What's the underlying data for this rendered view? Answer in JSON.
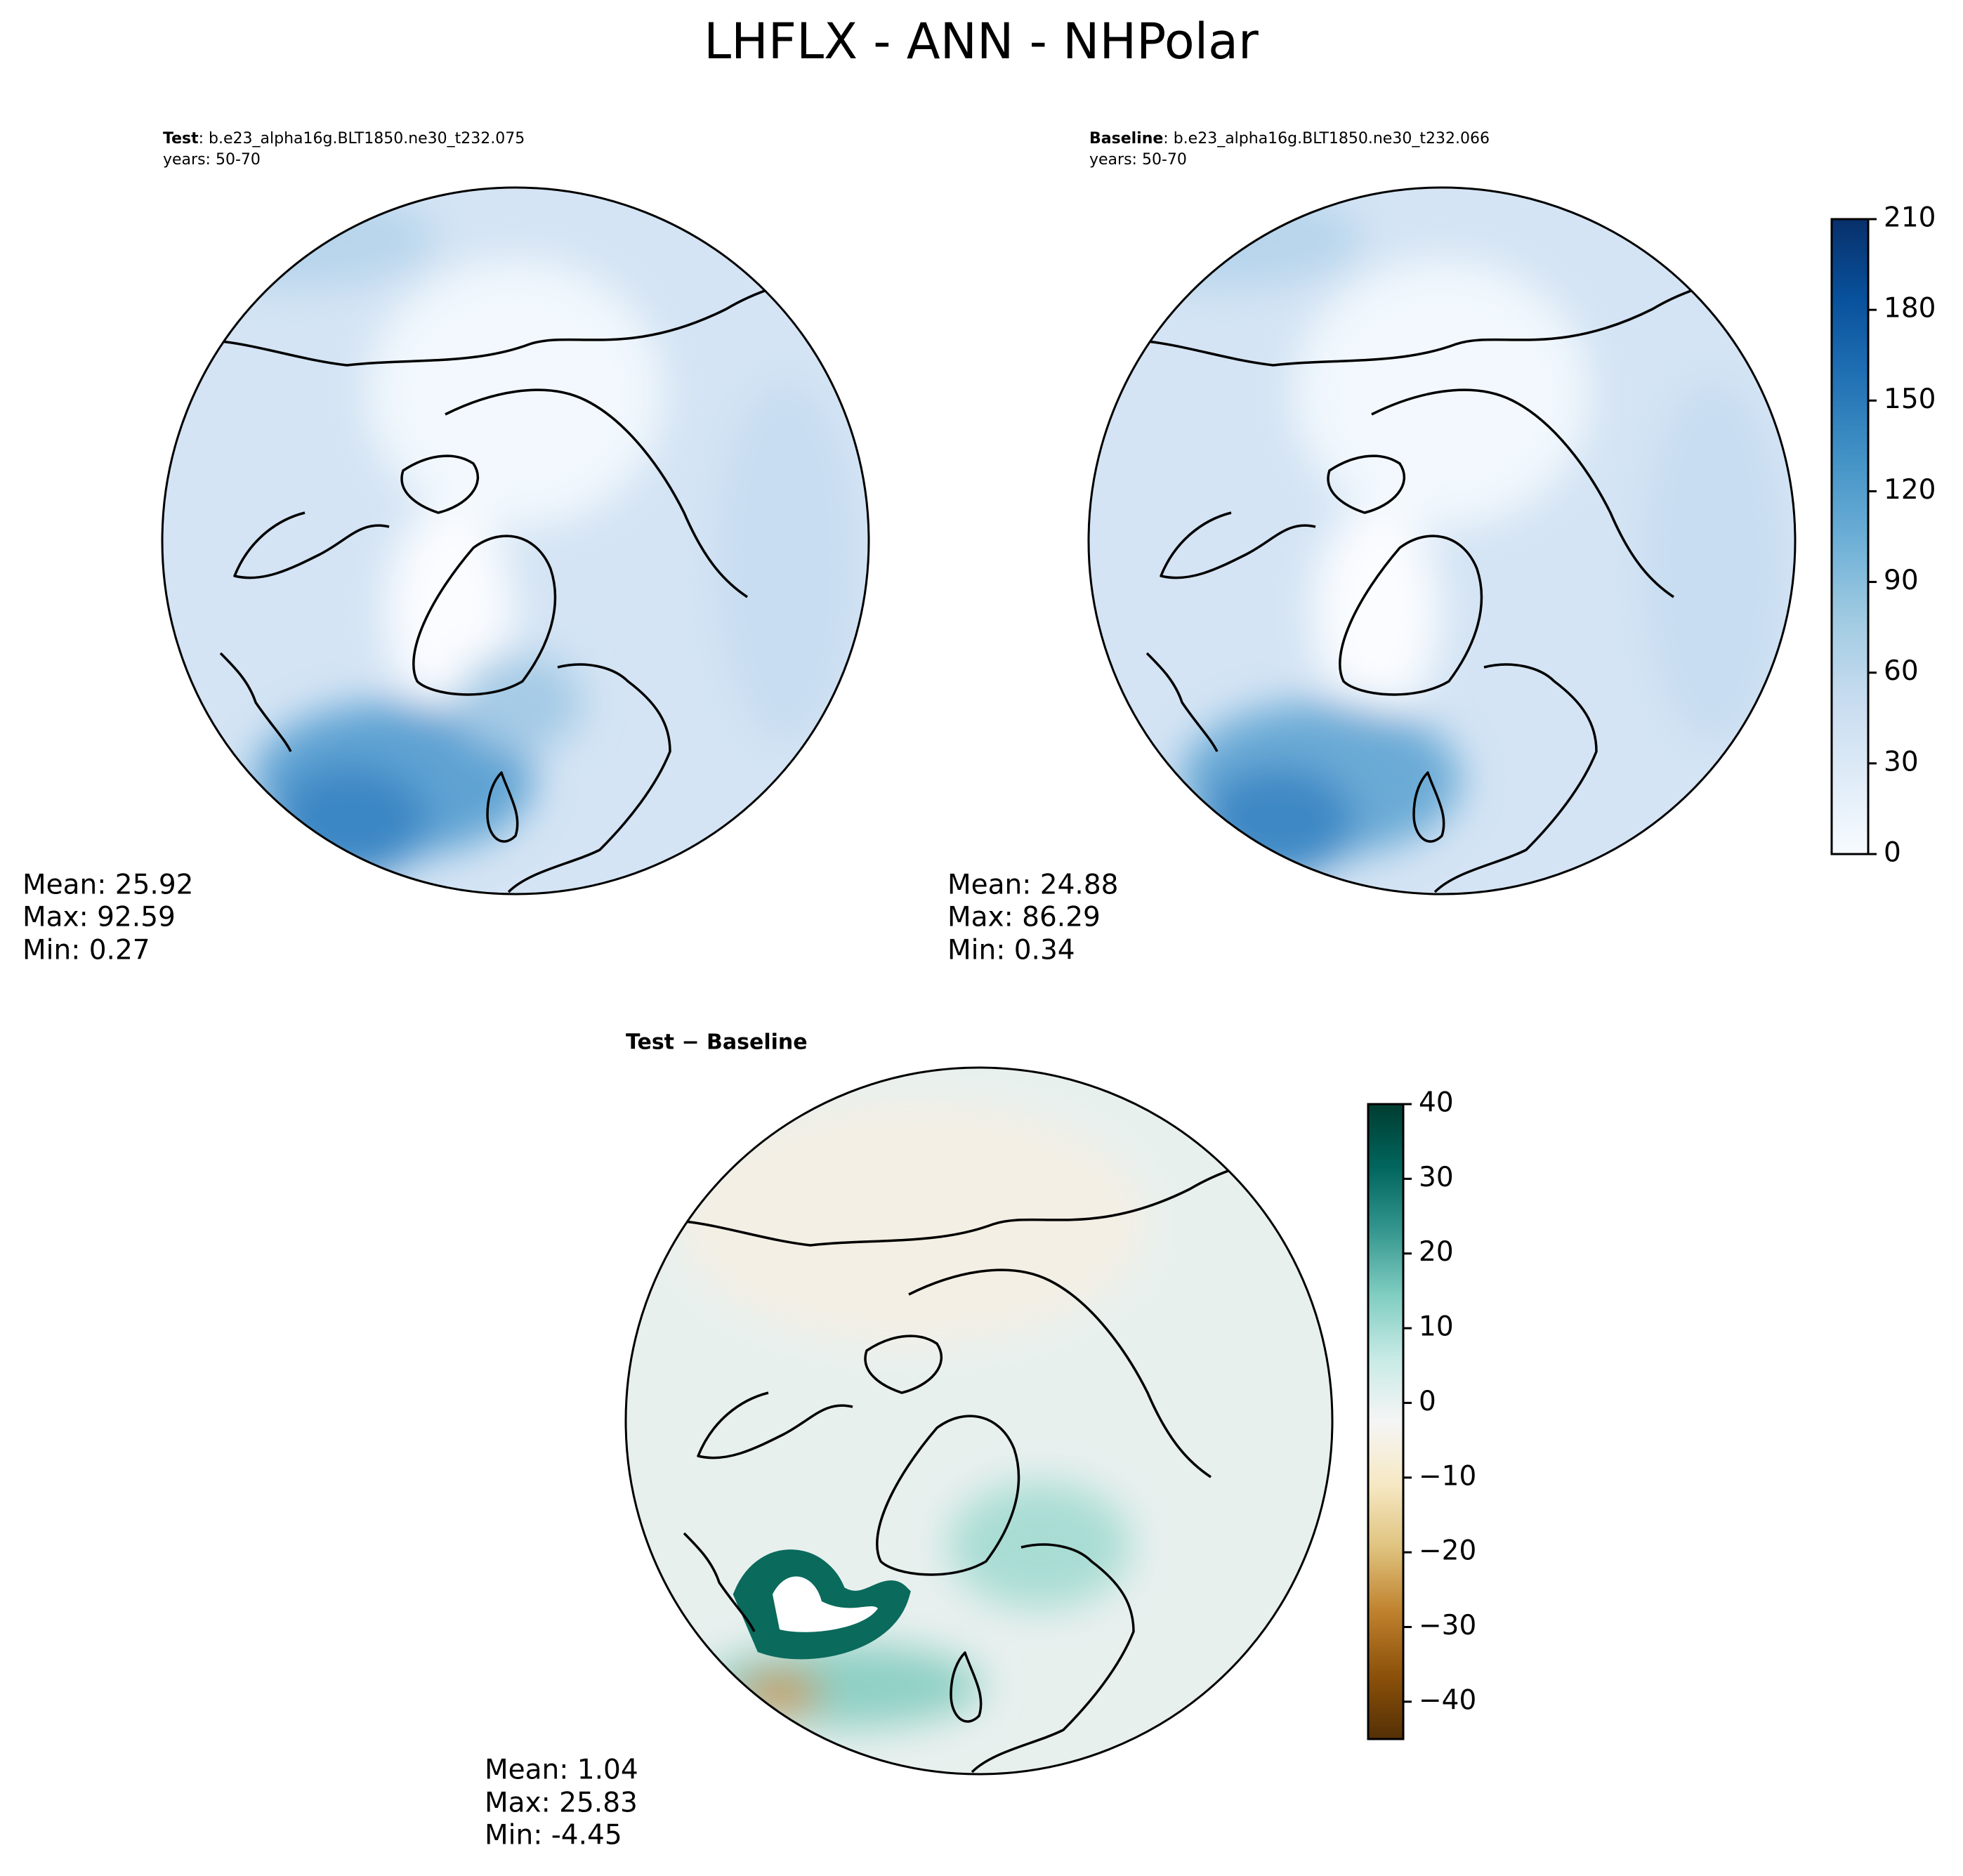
{
  "title": "LHFLX - ANN - NHPolar",
  "panels": [
    {
      "label": "Test",
      "case": ": b.e23_alpha16g.BLT1850.ne30_t232.075",
      "years": "years: 50-70",
      "stats": [
        "Mean: 25.92",
        "Max: 92.59",
        "Min:  0.27"
      ]
    },
    {
      "label": "Baseline",
      "case": ": b.e23_alpha16g.BLT1850.ne30_t232.066",
      "years": "years: 50-70",
      "stats": [
        "Mean: 24.88",
        "Max: 86.29",
        "Min:  0.34"
      ]
    },
    {
      "label": "Test − Baseline",
      "stats": [
        "Mean:  1.04",
        "Max: 25.83",
        "Min: -4.45"
      ]
    }
  ],
  "colorbars": [
    {
      "lim": [
        0,
        210
      ],
      "ticks": [
        0,
        30,
        60,
        90,
        120,
        150,
        180,
        210
      ],
      "colors": [
        "#f7fbff",
        "#deebf7",
        "#c6dbef",
        "#9ecae1",
        "#6baed6",
        "#4292c6",
        "#2171b5",
        "#08519c",
        "#08306b"
      ]
    },
    {
      "lim": [
        -45,
        40
      ],
      "ticks": [
        {
          "value": -40,
          "label": "−40"
        },
        {
          "value": -30,
          "label": "−30"
        },
        {
          "value": -20,
          "label": "−20"
        },
        {
          "value": -10,
          "label": "−10"
        },
        0,
        10,
        20,
        30,
        40
      ],
      "colors": [
        "#543005",
        "#8c510a",
        "#bf812d",
        "#dfc27d",
        "#f6e8c3",
        "#f5f5f5",
        "#c7eae5",
        "#80cdc1",
        "#35978f",
        "#01665e",
        "#003c30"
      ]
    }
  ]
}
